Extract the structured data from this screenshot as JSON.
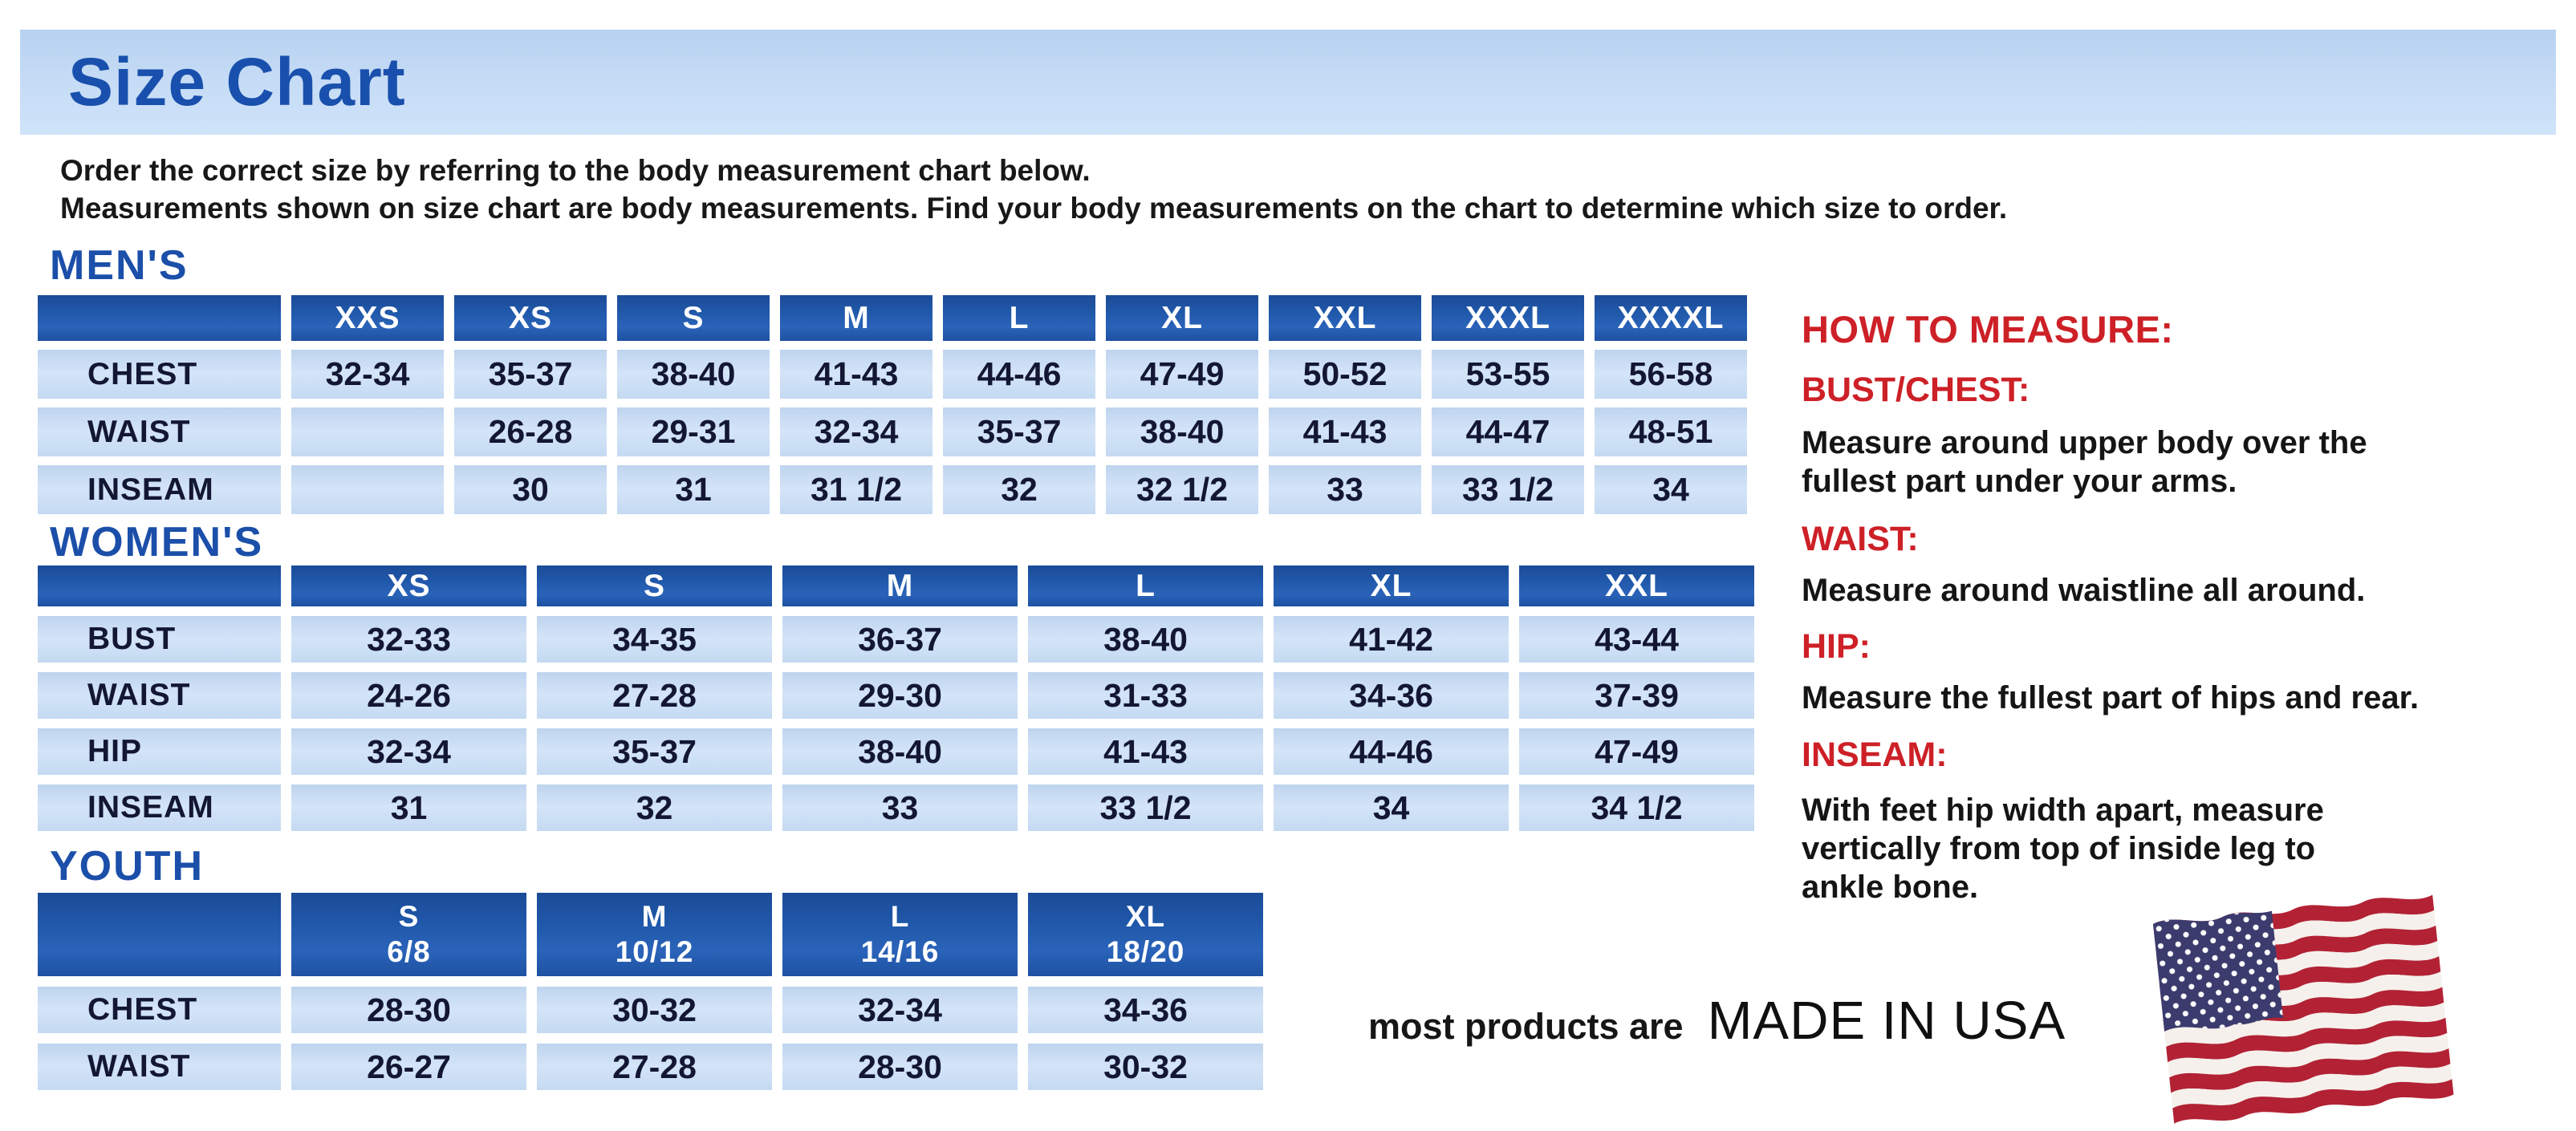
{
  "banner": {
    "title": "Size Chart"
  },
  "intro": {
    "line1": "Order the correct size by referring to the body measurement chart below.",
    "line2": "Measurements shown on size chart are body measurements.  Find your body measurements on the chart to determine which size to order."
  },
  "tables": {
    "mens": {
      "heading": "MEN'S",
      "columns": [
        "XXS",
        "XS",
        "S",
        "M",
        "L",
        "XL",
        "XXL",
        "XXXL",
        "XXXXL"
      ],
      "rows": [
        {
          "label": "CHEST",
          "values": [
            "32-34",
            "35-37",
            "38-40",
            "41-43",
            "44-46",
            "47-49",
            "50-52",
            "53-55",
            "56-58"
          ]
        },
        {
          "label": "WAIST",
          "values": [
            "",
            "26-28",
            "29-31",
            "32-34",
            "35-37",
            "38-40",
            "41-43",
            "44-47",
            "48-51"
          ]
        },
        {
          "label": "INSEAM",
          "values": [
            "",
            "30",
            "31",
            "31 1/2",
            "32",
            "32 1/2",
            "33",
            "33 1/2",
            "34"
          ]
        }
      ]
    },
    "womens": {
      "heading": "WOMEN'S",
      "columns": [
        "XS",
        "S",
        "M",
        "L",
        "XL",
        "XXL"
      ],
      "rows": [
        {
          "label": "BUST",
          "values": [
            "32-33",
            "34-35",
            "36-37",
            "38-40",
            "41-42",
            "43-44"
          ]
        },
        {
          "label": "WAIST",
          "values": [
            "24-26",
            "27-28",
            "29-30",
            "31-33",
            "34-36",
            "37-39"
          ]
        },
        {
          "label": "HIP",
          "values": [
            "32-34",
            "35-37",
            "38-40",
            "41-43",
            "44-46",
            "47-49"
          ]
        },
        {
          "label": "INSEAM",
          "values": [
            "31",
            "32",
            "33",
            "33 1/2",
            "34",
            "34 1/2"
          ]
        }
      ]
    },
    "youth": {
      "heading": "YOUTH",
      "columns": [
        "S\n6/8",
        "M\n10/12",
        "L\n14/16",
        "XL\n18/20"
      ],
      "rows": [
        {
          "label": "CHEST",
          "values": [
            "28-30",
            "30-32",
            "32-34",
            "34-36"
          ]
        },
        {
          "label": "WAIST",
          "values": [
            "26-27",
            "27-28",
            "28-30",
            "30-32"
          ]
        }
      ]
    }
  },
  "how_to_measure": {
    "title": "HOW TO MEASURE:",
    "items": [
      {
        "label": "BUST/CHEST:",
        "text": "Measure around upper body over the\nfullest part under your arms."
      },
      {
        "label": "WAIST:",
        "text": "Measure around waistline all around."
      },
      {
        "label": "HIP:",
        "text": "Measure the fullest part of hips and rear."
      },
      {
        "label": "INSEAM:",
        "text": "With feet hip width apart, measure\nvertically from top of inside leg to\nankle bone."
      }
    ]
  },
  "footer": {
    "prefix": "most products are",
    "emphasis": "MADE IN USA",
    "flag_icon": "us-flag-icon"
  },
  "colors": {
    "banner_blue": "#c6dcf6",
    "heading_blue": "#1b4fa9",
    "header_cell_blue": "#2159ab",
    "data_cell_blue": "#c9def4",
    "data_text_navy": "#131733",
    "accent_red": "#cd2027",
    "flag_red": "#b22234",
    "flag_canton_blue": "#3c3b6e"
  }
}
